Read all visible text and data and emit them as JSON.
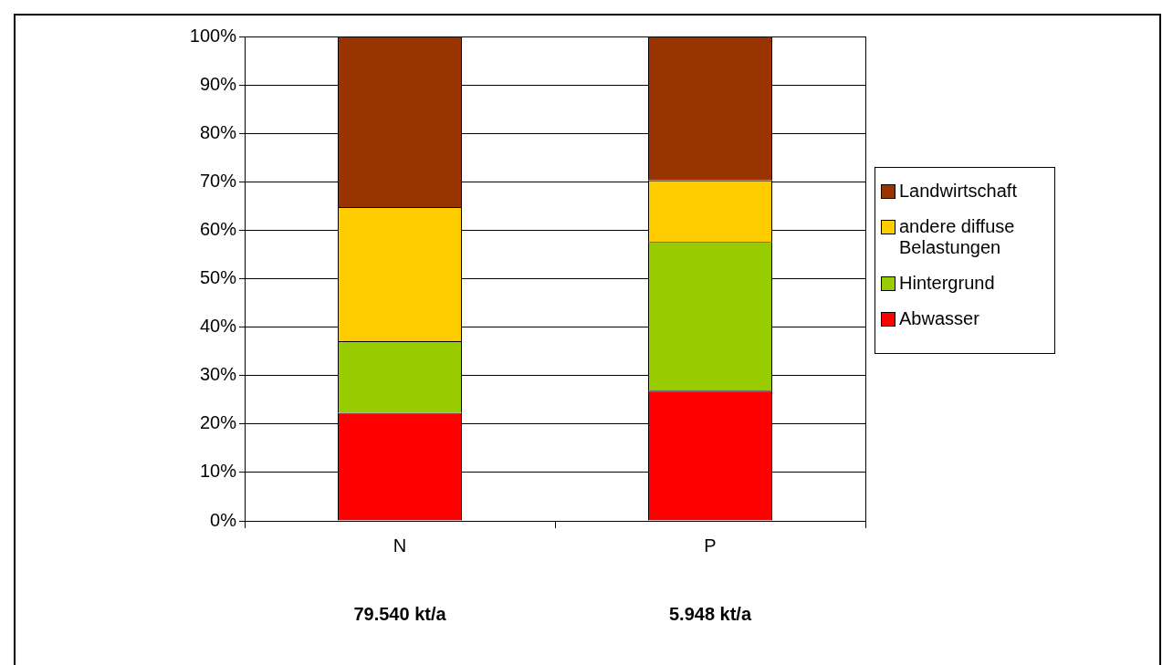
{
  "chart_data": {
    "type": "bar",
    "stacked": true,
    "categories": [
      "N",
      "P"
    ],
    "series": [
      {
        "name": "Abwasser",
        "color": "#ff0000",
        "values": [
          22.3,
          26.9
        ]
      },
      {
        "name": "Hintergrund",
        "color": "#99cc00",
        "values": [
          14.8,
          30.7
        ]
      },
      {
        "name": "andere diffuse Belastungen",
        "color": "#ffcc00",
        "values": [
          27.7,
          12.7
        ]
      },
      {
        "name": "Landwirtschaft",
        "color": "#993300",
        "values": [
          35.2,
          29.7
        ]
      }
    ],
    "ylim": [
      0,
      100
    ],
    "yticks": [
      {
        "value": 0,
        "label": "0%"
      },
      {
        "value": 10,
        "label": "10%"
      },
      {
        "value": 20,
        "label": "20%"
      },
      {
        "value": 30,
        "label": "30%"
      },
      {
        "value": 40,
        "label": "40%"
      },
      {
        "value": 50,
        "label": "50%"
      },
      {
        "value": 60,
        "label": "60%"
      },
      {
        "value": 70,
        "label": "70%"
      },
      {
        "value": 80,
        "label": "80%"
      },
      {
        "value": 90,
        "label": "90%"
      },
      {
        "value": 100,
        "label": "100%"
      }
    ],
    "grid": "y",
    "legend": "right",
    "annotations": [
      "79.540 kt/a",
      "5.948 kt/a"
    ]
  }
}
